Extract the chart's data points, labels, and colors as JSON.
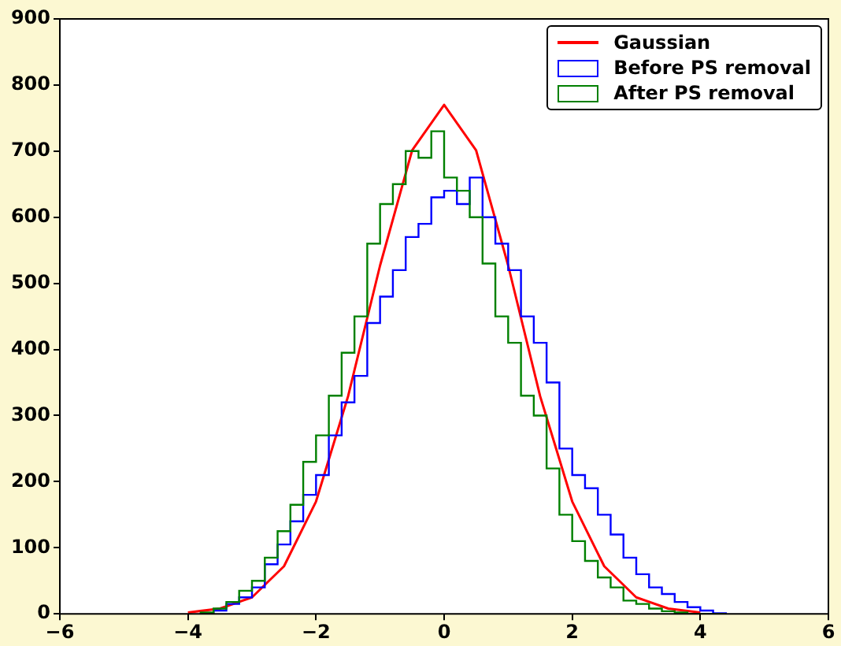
{
  "chart_data": {
    "type": "histogram",
    "bins": [
      -3.8,
      -3.6,
      -3.4,
      -3.2,
      -3.0,
      -2.8,
      -2.6,
      -2.4,
      -2.2,
      -2.0,
      -1.8,
      -1.6,
      -1.4,
      -1.2,
      -1.0,
      -0.8,
      -0.6,
      -0.4,
      -0.2,
      0.0,
      0.2,
      0.4,
      0.6,
      0.8,
      1.0,
      1.2,
      1.4,
      1.6,
      1.8,
      2.0,
      2.2,
      2.4,
      2.6,
      2.8,
      3.0,
      3.2,
      3.4,
      3.6,
      3.8,
      4.0,
      4.2,
      4.4
    ],
    "series": [
      {
        "name": "Gaussian",
        "type": "line",
        "color": "#ff0000",
        "x": [
          -4,
          -3.5,
          -3,
          -2.5,
          -2,
          -1.5,
          -1,
          -0.5,
          0,
          0.5,
          1,
          1.5,
          2,
          2.5,
          3,
          3.5,
          4
        ],
        "values": [
          2,
          8,
          25,
          72,
          170,
          329,
          527,
          701,
          770,
          701,
          527,
          329,
          170,
          72,
          25,
          8,
          2
        ]
      },
      {
        "name": "Before PS removal",
        "color": "#0000ff",
        "values": [
          1,
          5,
          15,
          25,
          40,
          75,
          105,
          140,
          180,
          210,
          270,
          320,
          360,
          440,
          480,
          520,
          570,
          590,
          630,
          640,
          620,
          660,
          600,
          560,
          520,
          450,
          410,
          350,
          250,
          210,
          190,
          150,
          120,
          85,
          60,
          40,
          30,
          18,
          10,
          5,
          1
        ]
      },
      {
        "name": "After PS removal",
        "color": "#008000",
        "values": [
          2,
          8,
          18,
          35,
          50,
          85,
          125,
          165,
          230,
          270,
          330,
          395,
          450,
          560,
          620,
          650,
          700,
          690,
          730,
          660,
          640,
          600,
          530,
          450,
          410,
          330,
          300,
          220,
          150,
          110,
          80,
          55,
          40,
          20,
          15,
          8,
          4,
          2,
          0,
          0,
          0
        ]
      }
    ],
    "xlim": [
      -6,
      6
    ],
    "xticks": [
      {
        "value": -6,
        "label": "−6"
      },
      {
        "value": -4,
        "label": "−4"
      },
      {
        "value": -2,
        "label": "−2"
      },
      0,
      2,
      4,
      6
    ],
    "ylim": [
      0,
      900
    ],
    "yticks": [
      0,
      100,
      200,
      300,
      400,
      500,
      600,
      700,
      800,
      900
    ],
    "grid": false,
    "legend": "top right"
  }
}
